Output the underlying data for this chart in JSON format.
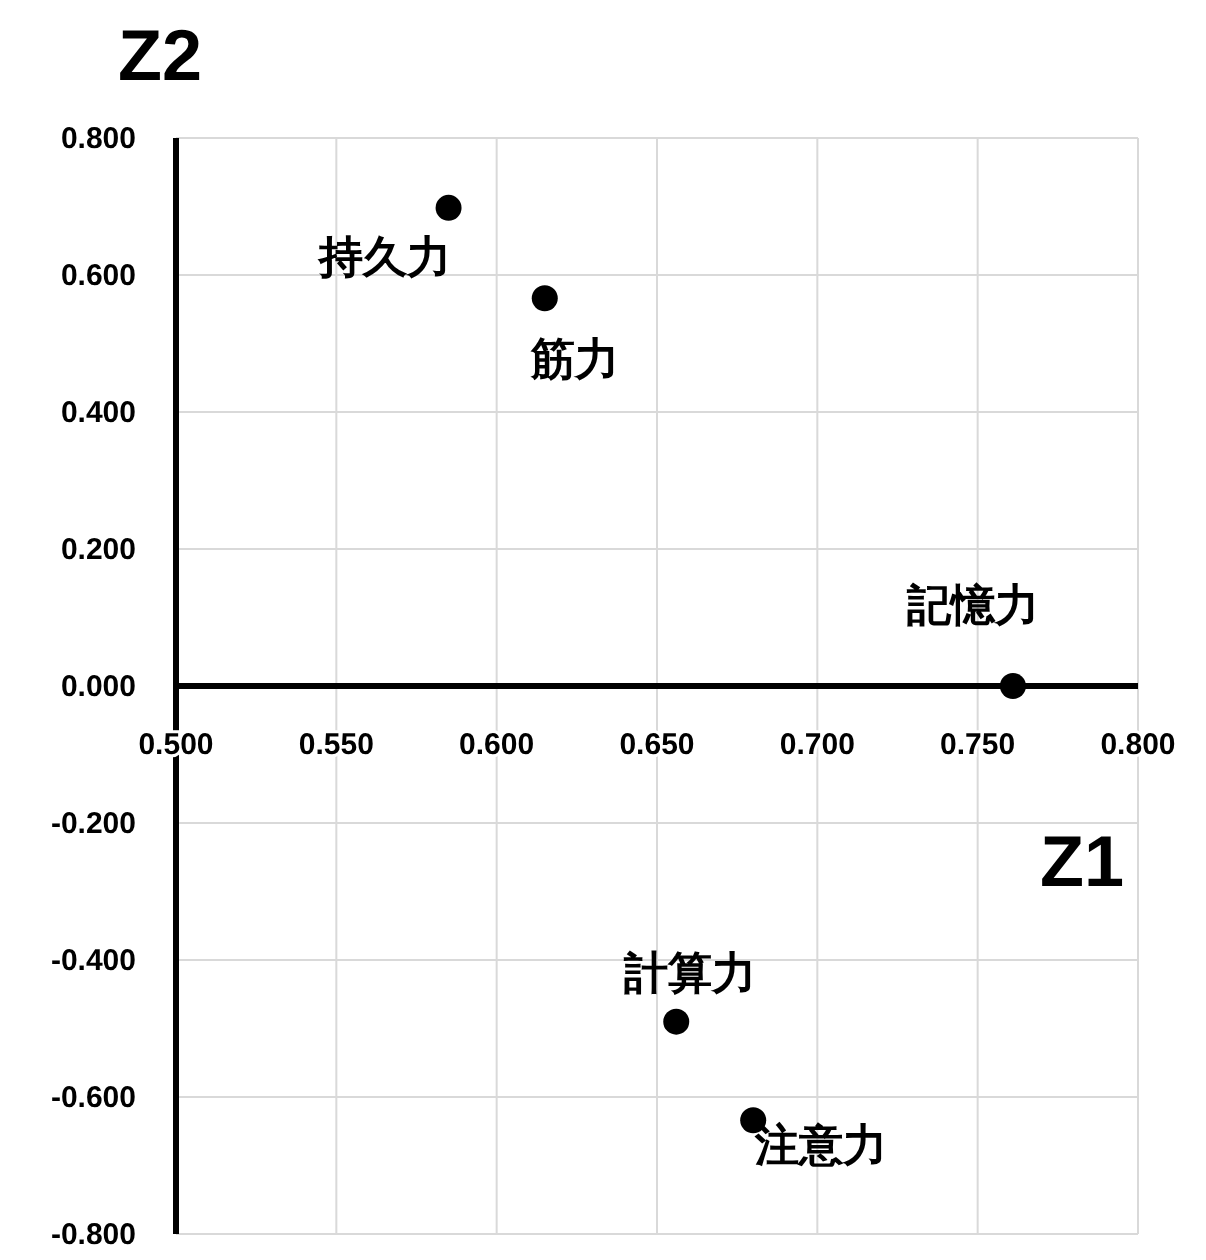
{
  "chart_data": {
    "type": "scatter",
    "xlabel": "Z1",
    "ylabel": "Z2",
    "x": [
      0.585,
      0.615,
      0.761,
      0.656,
      0.68
    ],
    "series": [
      {
        "color": "#000000",
        "values": [
          0.698,
          0.566,
          0.0,
          -0.49,
          -0.634
        ]
      }
    ],
    "annotations": [
      {
        "text": "持久力",
        "x": 0.585,
        "y": 0.698
      },
      {
        "text": "筋力",
        "x": 0.615,
        "y": 0.566
      },
      {
        "text": "記憶力",
        "x": 0.761,
        "y": 0.0
      },
      {
        "text": "計算力",
        "x": 0.656,
        "y": -0.49
      },
      {
        "text": "注意力",
        "x": 0.68,
        "y": -0.634
      }
    ],
    "xlim": [
      0.5,
      0.8
    ],
    "xticks": [
      {
        "value": 0.5,
        "label": "0.500"
      },
      {
        "value": 0.55,
        "label": "0.550"
      },
      {
        "value": 0.6,
        "label": "0.600"
      },
      {
        "value": 0.65,
        "label": "0.650"
      },
      {
        "value": 0.7,
        "label": "0.700"
      },
      {
        "value": 0.75,
        "label": "0.750"
      },
      {
        "value": 0.8,
        "label": "0.800"
      }
    ],
    "ylim": [
      -0.8,
      0.8
    ],
    "yticks": [
      {
        "value": 0.8,
        "label": "0.800"
      },
      {
        "value": 0.6,
        "label": "0.600"
      },
      {
        "value": 0.4,
        "label": "0.400"
      },
      {
        "value": 0.2,
        "label": "0.200"
      },
      {
        "value": 0.0,
        "label": "0.000"
      },
      {
        "value": -0.2,
        "label": "-0.200"
      },
      {
        "value": -0.4,
        "label": "-0.400"
      },
      {
        "value": -0.6,
        "label": "-0.600"
      },
      {
        "value": -0.8,
        "label": "-0.800"
      }
    ],
    "grid": true,
    "marker": "circle"
  }
}
